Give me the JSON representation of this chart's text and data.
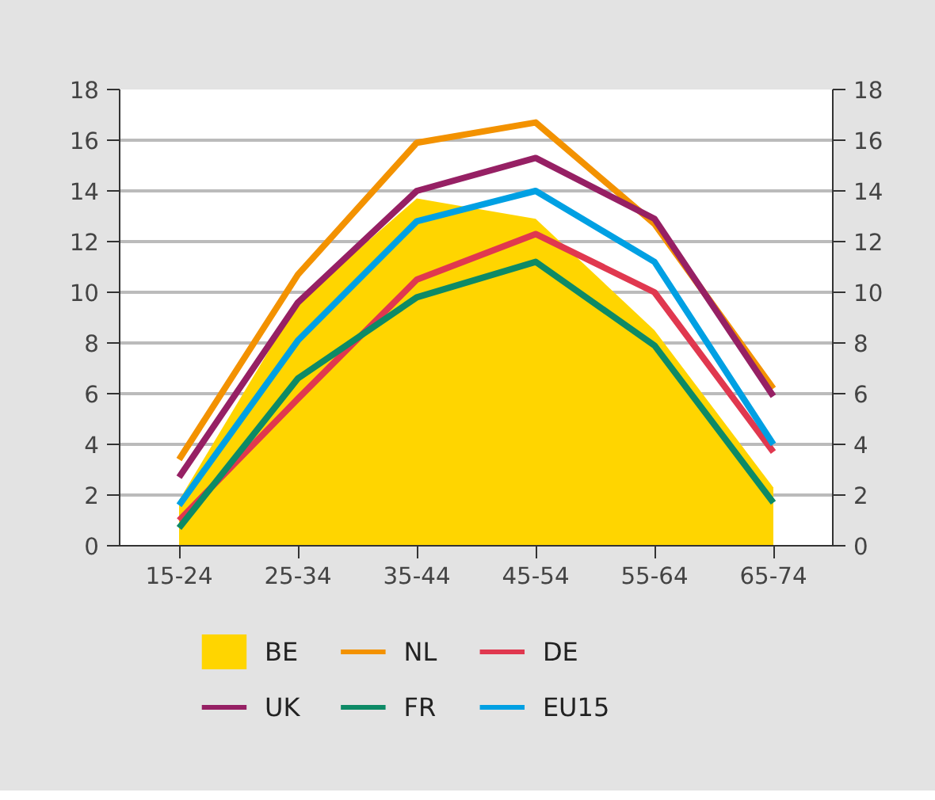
{
  "chart_data": {
    "type": "line",
    "categories": [
      "15-24",
      "25-34",
      "35-44",
      "45-54",
      "55-64",
      "65-74"
    ],
    "ylim": [
      0,
      18
    ],
    "yticks": [
      0,
      2,
      4,
      6,
      8,
      10,
      12,
      14,
      16,
      18
    ],
    "y2lim": [
      0,
      18
    ],
    "y2ticks": [
      0,
      2,
      4,
      6,
      8,
      10,
      12,
      14,
      16,
      18
    ],
    "grid": "y",
    "legend": "bottom",
    "series": [
      {
        "name": "BE",
        "type": "area",
        "color": "#ffd500",
        "values": [
          1.8,
          9.6,
          13.7,
          12.9,
          8.5,
          2.3
        ]
      },
      {
        "name": "NL",
        "color": "#f39200",
        "values": [
          3.4,
          10.7,
          15.9,
          16.7,
          12.7,
          6.2
        ]
      },
      {
        "name": "DE",
        "color": "#e0384f",
        "values": [
          1.0,
          5.8,
          10.5,
          12.3,
          10.0,
          3.7
        ]
      },
      {
        "name": "UK",
        "color": "#962064",
        "values": [
          2.7,
          9.6,
          14.0,
          15.3,
          12.9,
          5.9
        ]
      },
      {
        "name": "FR",
        "color": "#0d8a66",
        "values": [
          0.7,
          6.6,
          9.8,
          11.2,
          7.9,
          1.7
        ]
      },
      {
        "name": "EU15",
        "color": "#00a0e3",
        "values": [
          1.6,
          8.1,
          12.8,
          14.0,
          11.2,
          4.0
        ]
      }
    ]
  }
}
